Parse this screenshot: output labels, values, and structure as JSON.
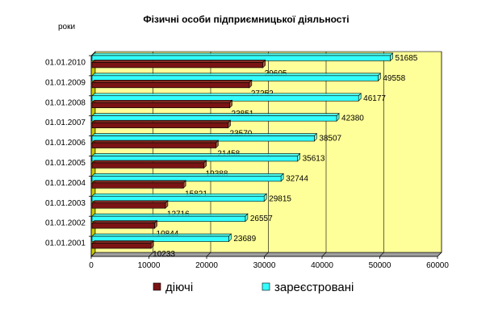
{
  "chart_data": {
    "type": "bar",
    "orientation": "horizontal",
    "title": "Фізичні особи підприємницької діяльності",
    "ylabel": "роки",
    "xlabel": "",
    "categories": [
      "01.01.2001",
      "01.01.2002",
      "01.01.2003",
      "01.01.2004",
      "01.01.2005",
      "01.01.2006",
      "01.01.2007",
      "01.01.2008",
      "01.01.2009",
      "01.01.2010"
    ],
    "series": [
      {
        "name": "діючі",
        "color": "#7a1414",
        "values": [
          10233,
          10844,
          12716,
          15821,
          19388,
          21458,
          23570,
          23851,
          27252,
          29605
        ],
        "labels": [
          "10233",
          "10844",
          "12716",
          "15821",
          "19388",
          "21458",
          "23570",
          "23851",
          "27252",
          "29605"
        ]
      },
      {
        "name": "зареєстровані",
        "color": "#33ffff",
        "values": [
          23689,
          26557,
          29815,
          32744,
          35613,
          38507,
          42380,
          46177,
          49558,
          51685
        ],
        "labels": [
          "23689",
          "26557",
          "29815",
          "32744",
          "35613",
          "38507",
          "42380",
          "46177",
          "49558",
          "51685"
        ]
      }
    ],
    "xlim": [
      0,
      60000
    ],
    "xticks": [
      0,
      10000,
      20000,
      30000,
      40000,
      50000,
      60000
    ],
    "xtick_labels": [
      "0",
      "10000",
      "20000",
      "30000",
      "40000",
      "50000",
      "60000"
    ],
    "grid": "vertical",
    "legend_position": "bottom",
    "plot_background": "#ffff99"
  }
}
